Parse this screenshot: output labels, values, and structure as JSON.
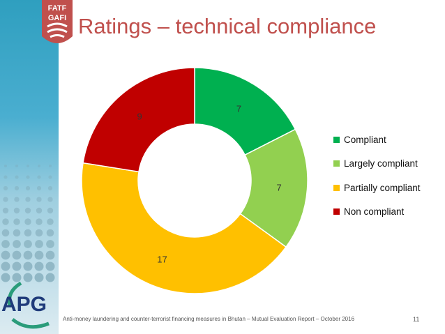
{
  "slide": {
    "title": "Ratings – technical compliance",
    "footer": "Anti-money laundering and counter-terrorist financing measures in Bhutan – Mutual Evaluation Report – October 2016",
    "page_number": "11",
    "logo_top_text_1": "FATF",
    "logo_top_text_2": "GAFI",
    "logo_bottom_text": "APG"
  },
  "chart_data": {
    "type": "pie",
    "donut": true,
    "categories": [
      "Compliant",
      "Largely compliant",
      "Partially compliant",
      "Non compliant"
    ],
    "values": [
      7,
      7,
      17,
      9
    ],
    "colors": [
      "#00b050",
      "#92d050",
      "#ffc000",
      "#c00000"
    ],
    "legend_position": "right",
    "title": ""
  }
}
